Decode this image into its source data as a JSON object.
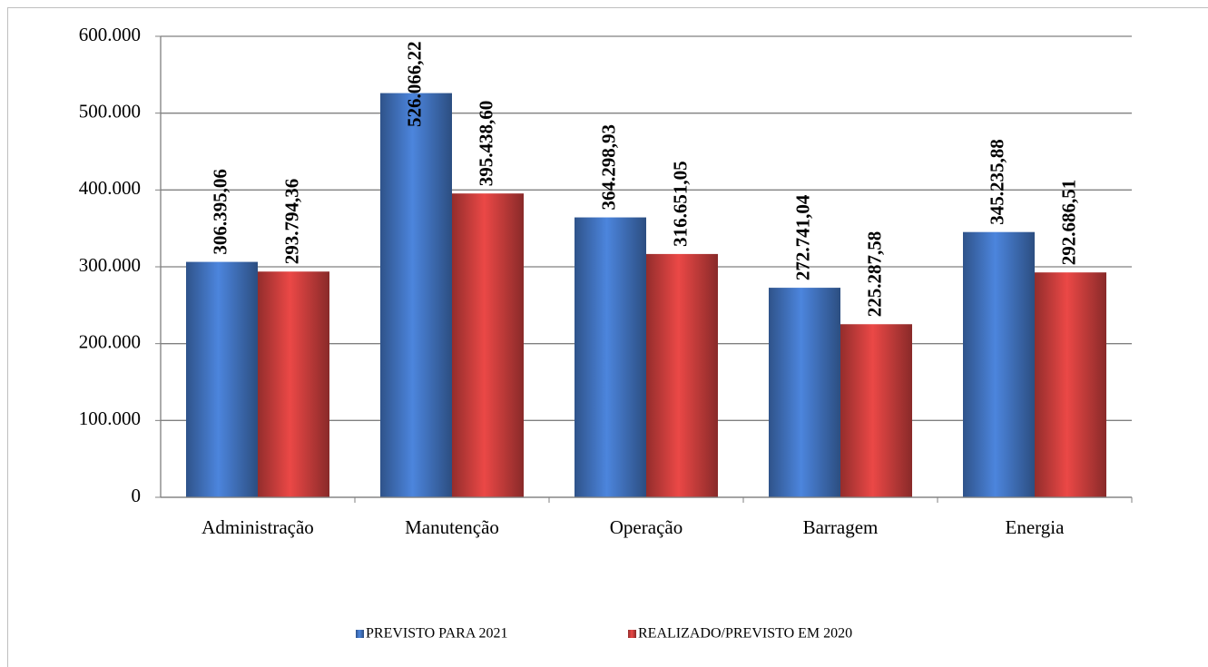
{
  "chart_data": {
    "type": "bar",
    "categories": [
      "Administração",
      "Manutenção",
      "Operação",
      "Barragem",
      "Energia"
    ],
    "series": [
      {
        "name": "PREVISTO PARA 2021",
        "color": "#3f6fb8",
        "values": [
          306395.06,
          526066.22,
          364298.93,
          272741.04,
          345235.88
        ],
        "value_labels": [
          "306.395,06",
          "526.066,22",
          "364.298,93",
          "272.741,04",
          "345.235,88"
        ]
      },
      {
        "name": "REALIZADO/PREVISTO EM 2020",
        "color": "#c43c3a",
        "values": [
          293794.36,
          395438.6,
          316651.05,
          225287.58,
          292686.51
        ],
        "value_labels": [
          "293.794,36",
          "395.438,60",
          "316.651,05",
          "225.287,58",
          "292.686,51"
        ]
      }
    ],
    "ylim": [
      0,
      600000
    ],
    "yticks": [
      0,
      {
        "value": 100000,
        "label": "100.000"
      },
      {
        "value": 200000,
        "label": "200.000"
      },
      {
        "value": 300000,
        "label": "300.000"
      },
      {
        "value": 400000,
        "label": "400.000"
      },
      {
        "value": 500000,
        "label": "500.000"
      },
      {
        "value": 600000,
        "label": "600.000"
      }
    ],
    "grid": true,
    "legend": "bottom"
  }
}
